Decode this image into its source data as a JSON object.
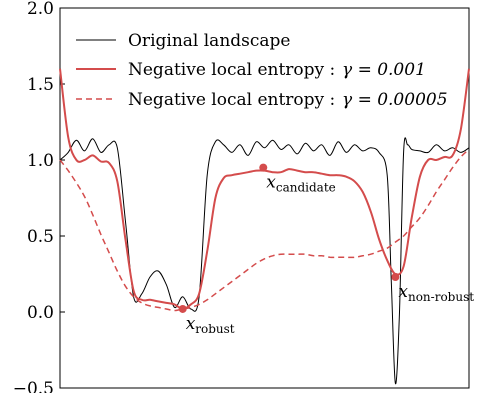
{
  "chart_data": {
    "type": "line",
    "xlim": [
      0,
      1
    ],
    "ylim": [
      -0.5,
      2.0
    ],
    "yticks": [
      -0.5,
      0.0,
      0.5,
      1.0,
      1.5,
      2.0
    ],
    "ytick_labels": [
      "−0.5",
      "0.0",
      "0.5",
      "1.0",
      "1.5",
      "2.0"
    ],
    "xticks": [],
    "grid": false,
    "legend_position": "top-left",
    "legend": {
      "line1": "Original landscape",
      "line2_name": "Negative local entropy :",
      "line2_gamma": "γ = 0.001",
      "line3_name": "Negative local entropy :",
      "line3_gamma": "γ = 0.00005"
    },
    "colors": {
      "original": "#000000",
      "entropy": "#d44c4c"
    },
    "series": [
      {
        "name": "Original landscape",
        "style": "solid-thin-black",
        "x": [
          0.0,
          0.02,
          0.04,
          0.06,
          0.08,
          0.1,
          0.12,
          0.14,
          0.16,
          0.18,
          0.2,
          0.22,
          0.24,
          0.26,
          0.28,
          0.3,
          0.32,
          0.34,
          0.36,
          0.38,
          0.4,
          0.42,
          0.44,
          0.46,
          0.48,
          0.5,
          0.52,
          0.54,
          0.56,
          0.58,
          0.6,
          0.62,
          0.64,
          0.66,
          0.68,
          0.7,
          0.72,
          0.74,
          0.76,
          0.78,
          0.8,
          0.81,
          0.82,
          0.83,
          0.84,
          0.85,
          0.86,
          0.88,
          0.9,
          0.92,
          0.94,
          0.96,
          0.98,
          1.0
        ],
        "y": [
          1.0,
          1.05,
          1.13,
          1.06,
          1.14,
          1.05,
          1.1,
          1.08,
          0.6,
          0.1,
          0.12,
          0.23,
          0.27,
          0.18,
          0.03,
          0.1,
          0.02,
          0.1,
          0.9,
          1.12,
          1.1,
          1.05,
          1.1,
          1.03,
          1.12,
          1.08,
          1.13,
          1.07,
          1.1,
          1.04,
          1.11,
          1.06,
          1.1,
          1.03,
          1.12,
          1.05,
          1.1,
          1.06,
          1.08,
          1.05,
          0.9,
          0.2,
          -0.47,
          0.0,
          1.05,
          1.1,
          1.07,
          1.06,
          1.05,
          1.1,
          1.06,
          1.08,
          1.05,
          1.08
        ]
      },
      {
        "name": "Negative local entropy : γ = 0.001",
        "style": "solid-thick-red",
        "x": [
          0.0,
          0.02,
          0.04,
          0.06,
          0.08,
          0.1,
          0.12,
          0.14,
          0.16,
          0.18,
          0.2,
          0.22,
          0.24,
          0.26,
          0.28,
          0.3,
          0.32,
          0.34,
          0.36,
          0.38,
          0.4,
          0.42,
          0.44,
          0.46,
          0.48,
          0.5,
          0.52,
          0.54,
          0.56,
          0.58,
          0.6,
          0.62,
          0.64,
          0.66,
          0.68,
          0.7,
          0.72,
          0.74,
          0.76,
          0.78,
          0.8,
          0.82,
          0.84,
          0.86,
          0.88,
          0.9,
          0.92,
          0.94,
          0.96,
          0.98,
          1.0
        ],
        "y": [
          1.6,
          1.15,
          1.0,
          1.0,
          1.03,
          0.99,
          0.98,
          0.86,
          0.48,
          0.14,
          0.08,
          0.08,
          0.07,
          0.06,
          0.05,
          0.02,
          0.05,
          0.12,
          0.4,
          0.75,
          0.88,
          0.9,
          0.91,
          0.92,
          0.93,
          0.93,
          0.92,
          0.92,
          0.94,
          0.93,
          0.92,
          0.92,
          0.91,
          0.9,
          0.9,
          0.89,
          0.86,
          0.79,
          0.66,
          0.48,
          0.34,
          0.25,
          0.3,
          0.62,
          0.89,
          1.0,
          1.0,
          1.02,
          1.03,
          1.2,
          1.6
        ]
      },
      {
        "name": "Negative local entropy : γ = 0.00005",
        "style": "dashed-red",
        "x": [
          0.0,
          0.02,
          0.04,
          0.06,
          0.08,
          0.1,
          0.12,
          0.14,
          0.16,
          0.18,
          0.2,
          0.22,
          0.24,
          0.26,
          0.28,
          0.3,
          0.32,
          0.34,
          0.36,
          0.38,
          0.4,
          0.42,
          0.44,
          0.46,
          0.48,
          0.5,
          0.52,
          0.54,
          0.56,
          0.58,
          0.6,
          0.62,
          0.64,
          0.66,
          0.68,
          0.7,
          0.72,
          0.74,
          0.76,
          0.78,
          0.8,
          0.82,
          0.84,
          0.86,
          0.88,
          0.9,
          0.92,
          0.94,
          0.96,
          0.98,
          1.0
        ],
        "y": [
          1.0,
          0.93,
          0.85,
          0.76,
          0.64,
          0.51,
          0.39,
          0.27,
          0.17,
          0.1,
          0.06,
          0.04,
          0.03,
          0.02,
          0.01,
          0.02,
          0.03,
          0.05,
          0.08,
          0.12,
          0.16,
          0.2,
          0.24,
          0.28,
          0.32,
          0.35,
          0.37,
          0.38,
          0.38,
          0.38,
          0.38,
          0.37,
          0.37,
          0.36,
          0.36,
          0.36,
          0.36,
          0.37,
          0.38,
          0.4,
          0.42,
          0.46,
          0.5,
          0.56,
          0.62,
          0.7,
          0.79,
          0.87,
          0.95,
          1.02,
          1.07
        ]
      }
    ],
    "points": [
      {
        "name": "robust",
        "x": 0.3,
        "y": 0.02,
        "label_main": "x",
        "label_sub": "robust"
      },
      {
        "name": "candidate",
        "x": 0.497,
        "y": 0.95,
        "label_main": "x",
        "label_sub": "candidate"
      },
      {
        "name": "non-robust",
        "x": 0.82,
        "y": 0.23,
        "label_main": "x",
        "label_sub": "non-robust"
      }
    ]
  }
}
